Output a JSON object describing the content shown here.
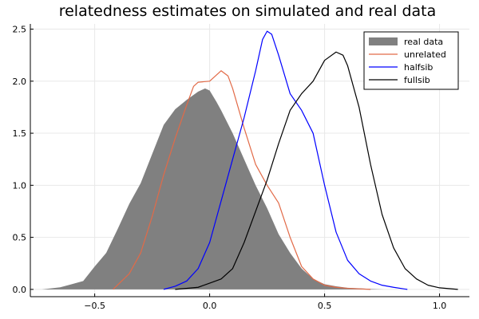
{
  "chart_data": {
    "type": "area",
    "title": "relatedness estimates on simulated and real data",
    "xlabel": "",
    "ylabel": "",
    "xlim": [
      -0.78,
      1.13
    ],
    "ylim": [
      -0.07,
      2.55
    ],
    "xticks": [
      -0.5,
      0.0,
      0.5,
      1.0
    ],
    "xtick_labels": [
      "−0.5",
      "0.0",
      "0.5",
      "1.0"
    ],
    "yticks": [
      0.0,
      0.5,
      1.0,
      1.5,
      2.0,
      2.5
    ],
    "ytick_labels": [
      "0.0",
      "0.5",
      "1.0",
      "1.5",
      "2.0",
      "2.5"
    ],
    "grid": true,
    "legend_position": "top-right",
    "series": [
      {
        "name": "real data",
        "kind": "filled-area",
        "color": "#808080",
        "x": [
          -0.73,
          -0.65,
          -0.6,
          -0.55,
          -0.5,
          -0.45,
          -0.4,
          -0.35,
          -0.3,
          -0.25,
          -0.2,
          -0.15,
          -0.1,
          -0.05,
          -0.02,
          0.0,
          0.03,
          0.05,
          0.1,
          0.15,
          0.2,
          0.25,
          0.3,
          0.35,
          0.4,
          0.45,
          0.5,
          0.55,
          0.6,
          0.65,
          0.7,
          0.76
        ],
        "y": [
          0.0,
          0.02,
          0.05,
          0.08,
          0.22,
          0.35,
          0.58,
          0.82,
          1.02,
          1.3,
          1.58,
          1.73,
          1.82,
          1.9,
          1.93,
          1.91,
          1.8,
          1.72,
          1.5,
          1.25,
          1.0,
          0.78,
          0.53,
          0.35,
          0.2,
          0.1,
          0.05,
          0.03,
          0.015,
          0.01,
          0.005,
          0.0
        ]
      },
      {
        "name": "unrelated",
        "kind": "line",
        "color": "#e26a47",
        "x": [
          -0.42,
          -0.35,
          -0.3,
          -0.25,
          -0.2,
          -0.15,
          -0.1,
          -0.07,
          -0.05,
          0.0,
          0.03,
          0.05,
          0.08,
          0.1,
          0.15,
          0.2,
          0.25,
          0.3,
          0.35,
          0.4,
          0.45,
          0.5,
          0.55,
          0.6,
          0.65,
          0.7
        ],
        "y": [
          0.0,
          0.15,
          0.35,
          0.7,
          1.1,
          1.45,
          1.77,
          1.95,
          1.99,
          2.0,
          2.06,
          2.1,
          2.05,
          1.93,
          1.55,
          1.2,
          1.0,
          0.83,
          0.5,
          0.22,
          0.1,
          0.04,
          0.02,
          0.01,
          0.005,
          0.0
        ]
      },
      {
        "name": "halfsib",
        "kind": "line",
        "color": "#0000ff",
        "x": [
          -0.2,
          -0.15,
          -0.1,
          -0.05,
          0.0,
          0.05,
          0.1,
          0.15,
          0.2,
          0.23,
          0.25,
          0.27,
          0.3,
          0.35,
          0.4,
          0.45,
          0.5,
          0.55,
          0.6,
          0.65,
          0.7,
          0.75,
          0.8,
          0.86
        ],
        "y": [
          0.0,
          0.03,
          0.08,
          0.2,
          0.45,
          0.85,
          1.25,
          1.65,
          2.1,
          2.4,
          2.48,
          2.45,
          2.25,
          1.88,
          1.72,
          1.5,
          1.0,
          0.55,
          0.28,
          0.15,
          0.08,
          0.04,
          0.02,
          0.0
        ]
      },
      {
        "name": "fullsib",
        "kind": "line",
        "color": "#000000",
        "x": [
          -0.15,
          -0.05,
          0.0,
          0.05,
          0.1,
          0.15,
          0.2,
          0.25,
          0.3,
          0.35,
          0.4,
          0.45,
          0.5,
          0.55,
          0.58,
          0.6,
          0.65,
          0.7,
          0.75,
          0.8,
          0.85,
          0.9,
          0.95,
          1.0,
          1.08
        ],
        "y": [
          0.0,
          0.02,
          0.06,
          0.1,
          0.2,
          0.45,
          0.75,
          1.05,
          1.4,
          1.72,
          1.88,
          2.0,
          2.2,
          2.28,
          2.25,
          2.15,
          1.75,
          1.2,
          0.72,
          0.4,
          0.2,
          0.1,
          0.04,
          0.015,
          0.0
        ]
      }
    ]
  }
}
